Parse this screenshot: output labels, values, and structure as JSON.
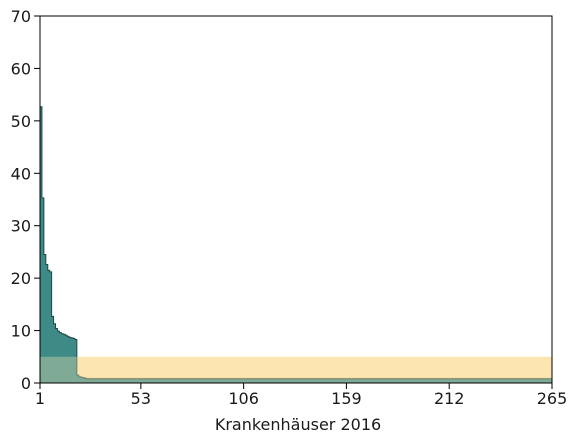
{
  "chart_data": {
    "type": "area",
    "title": "",
    "xlabel": "Krankenhäuser 2016",
    "ylabel": "",
    "xlim": [
      1,
      265
    ],
    "ylim": [
      0,
      70
    ],
    "x_ticks": [
      "1",
      "53",
      "106",
      "159",
      "212",
      "265"
    ],
    "y_ticks": [
      "0",
      "10",
      "20",
      "30",
      "40",
      "50",
      "60",
      "70"
    ],
    "grid": false,
    "legend": "none",
    "bands": [
      {
        "from": 0,
        "to": 5,
        "color": "#fde5b2"
      },
      {
        "from": 0,
        "to": 1,
        "color": "#f5ce85"
      }
    ],
    "series": [
      {
        "x": [
          1,
          2,
          3,
          4,
          5,
          6,
          7,
          8,
          9,
          10,
          11,
          12,
          13,
          14,
          15,
          16,
          17,
          18,
          19,
          20,
          21,
          22,
          23,
          24,
          25,
          265
        ],
        "values": [
          52.7,
          35.3,
          24.5,
          22.6,
          21.5,
          21.2,
          12.7,
          11.3,
          10.4,
          9.9,
          9.6,
          9.4,
          9.3,
          9.1,
          8.9,
          8.7,
          8.6,
          8.5,
          8.3,
          1.5,
          1.2,
          1.1,
          1.0,
          0.9,
          0.8,
          0.8
        ],
        "color": "#3d8a86"
      }
    ]
  }
}
